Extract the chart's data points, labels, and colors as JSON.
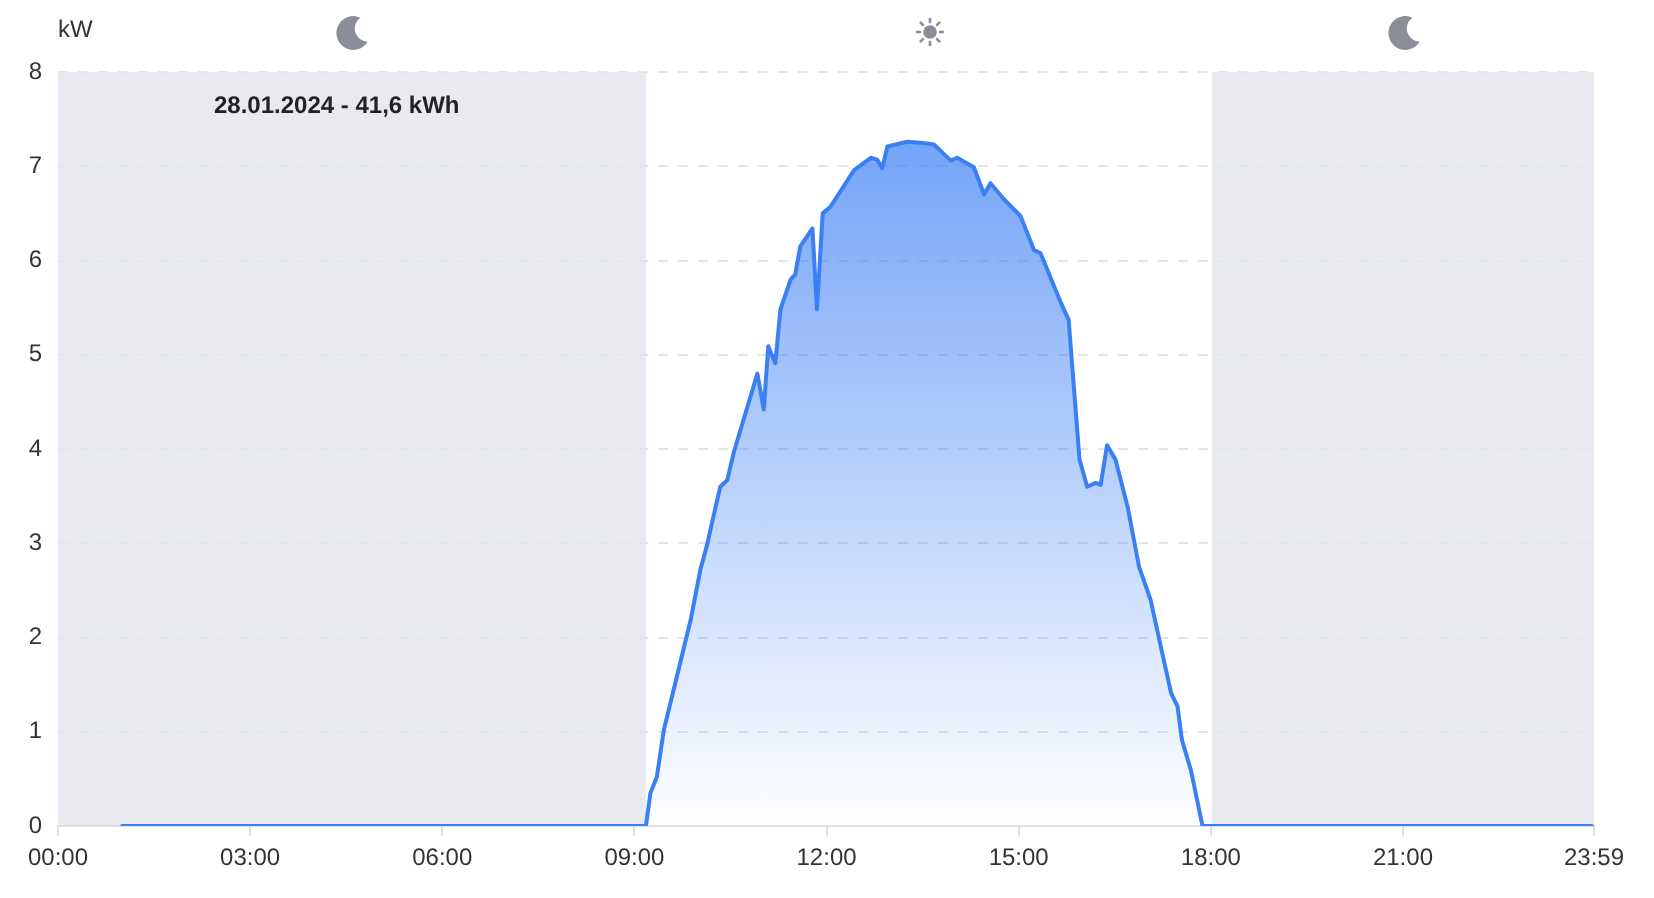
{
  "chart_data": {
    "type": "area",
    "title": "28.01.2024 - 41,6 kWh",
    "ylabel": "kW",
    "x": [
      1.0,
      9.18,
      9.25,
      9.35,
      9.46,
      9.7,
      9.88,
      10.03,
      10.13,
      10.34,
      10.45,
      10.55,
      10.92,
      11.02,
      11.09,
      11.2,
      11.28,
      11.44,
      11.51,
      11.59,
      11.78,
      11.85,
      11.94,
      12.06,
      12.27,
      12.43,
      12.69,
      12.79,
      12.87,
      12.95,
      13.26,
      13.47,
      13.68,
      13.94,
      14.04,
      14.3,
      14.46,
      14.56,
      14.77,
      14.93,
      15.03,
      15.24,
      15.34,
      15.66,
      15.78,
      15.95,
      16.07,
      16.2,
      16.28,
      16.38,
      16.51,
      16.7,
      16.88,
      17.06,
      17.22,
      17.38,
      17.48,
      17.55,
      17.69,
      17.87,
      23.95
    ],
    "values": [
      0,
      0,
      0.35,
      0.52,
      1.02,
      1.69,
      2.19,
      2.72,
      2.97,
      3.6,
      3.67,
      3.96,
      4.8,
      4.42,
      5.09,
      4.91,
      5.48,
      5.8,
      5.85,
      6.15,
      6.34,
      5.48,
      6.5,
      6.57,
      6.79,
      6.96,
      7.09,
      7.07,
      6.98,
      7.21,
      7.26,
      7.25,
      7.23,
      7.06,
      7.09,
      6.99,
      6.7,
      6.82,
      6.65,
      6.54,
      6.47,
      6.11,
      6.08,
      5.55,
      5.37,
      3.89,
      3.6,
      3.64,
      3.62,
      4.04,
      3.89,
      3.39,
      2.75,
      2.4,
      1.9,
      1.41,
      1.27,
      0.91,
      0.59,
      0,
      0
    ],
    "color": "#3b7ff5",
    "xlim": [
      0,
      23.983
    ],
    "xticks": [
      {
        "value": 0,
        "label": "00:00"
      },
      {
        "value": 3,
        "label": "03:00"
      },
      {
        "value": 6,
        "label": "06:00"
      },
      {
        "value": 9,
        "label": "09:00"
      },
      {
        "value": 12,
        "label": "12:00"
      },
      {
        "value": 15,
        "label": "15:00"
      },
      {
        "value": 18,
        "label": "18:00"
      },
      {
        "value": 21,
        "label": "21:00"
      },
      {
        "value": 23.983,
        "label": "23:59"
      }
    ],
    "ylim": [
      0,
      8
    ],
    "yticks": [
      0,
      1,
      2,
      3,
      4,
      5,
      6,
      7,
      8
    ],
    "grid": "y",
    "bands": [
      {
        "axis": "x",
        "from": 0,
        "to": 9.18,
        "color": "#e9eaf0"
      },
      {
        "axis": "x",
        "from": 18.02,
        "to": 23.983,
        "color": "#e9eaf0"
      }
    ]
  }
}
